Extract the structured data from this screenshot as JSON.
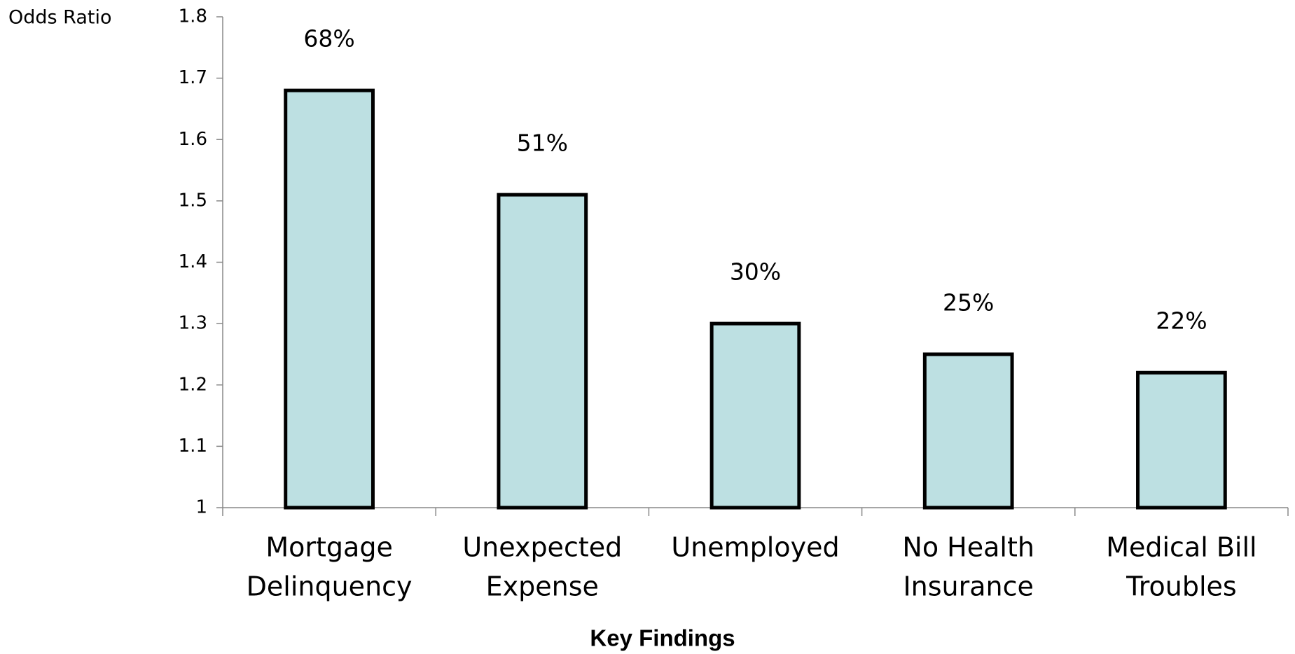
{
  "chart_data": {
    "type": "bar",
    "y_label": "Odds Ratio",
    "x_label": "Key Findings",
    "categories": [
      [
        "Mortgage",
        "Delinquency"
      ],
      [
        "Unexpected",
        "Expense"
      ],
      [
        "Unemployed"
      ],
      [
        "No Health",
        "Insurance"
      ],
      [
        "Medical Bill",
        "Troubles"
      ]
    ],
    "values": [
      1.68,
      1.51,
      1.3,
      1.25,
      1.22
    ],
    "value_labels": [
      "68%",
      "51%",
      "30%",
      "25%",
      "22%"
    ],
    "color": "#bde0e2",
    "ylim": [
      1,
      1.8
    ],
    "yticks": [
      1,
      1.1,
      1.2,
      1.3,
      1.4,
      1.5,
      1.6,
      1.7,
      1.8
    ],
    "grid": false
  }
}
